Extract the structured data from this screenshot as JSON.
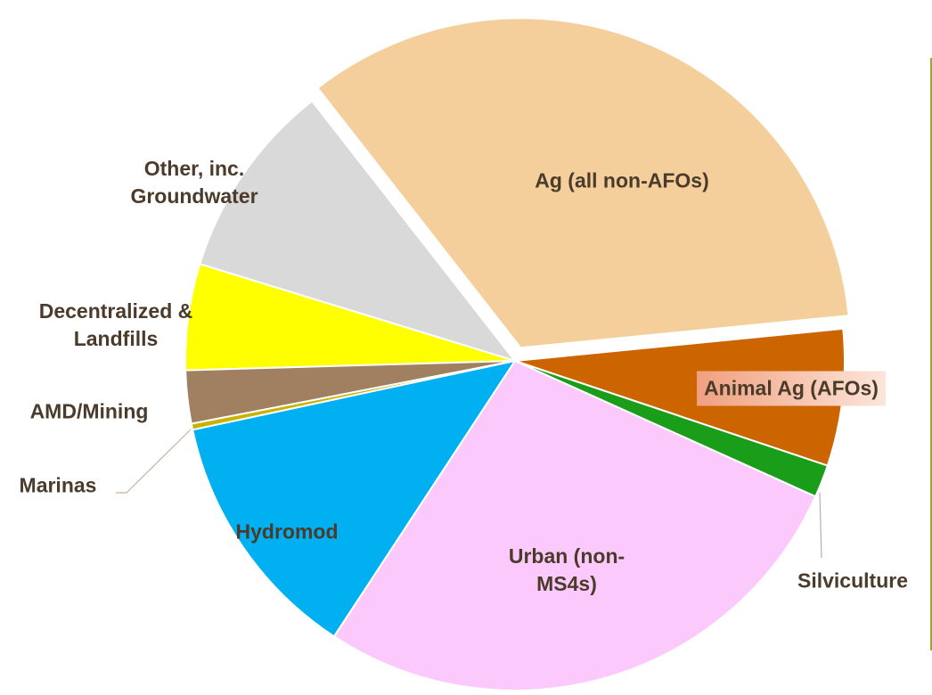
{
  "chart_data": {
    "type": "pie",
    "categories": [
      "Ag (all non-AFOs)",
      "Animal Ag (AFOs)",
      "Silviculture",
      "Urban (non-MS4s)",
      "Hydromod",
      "Marinas",
      "AMD/Mining",
      "Decentralized & Landfills",
      "Other, inc. Groundwater"
    ],
    "values": [
      34,
      6.7,
      1.6,
      27.5,
      12.4,
      0.3,
      2.6,
      5.2,
      9.7
    ],
    "colors": [
      "#f5cf9b",
      "#cc6400",
      "#1a9e1a",
      "#fcc9fc",
      "#00b0f0",
      "#c8b400",
      "#a08060",
      "#ffff00",
      "#d9d9d9"
    ],
    "exploded": [
      "Ag (all non-AFOs)"
    ]
  }
}
